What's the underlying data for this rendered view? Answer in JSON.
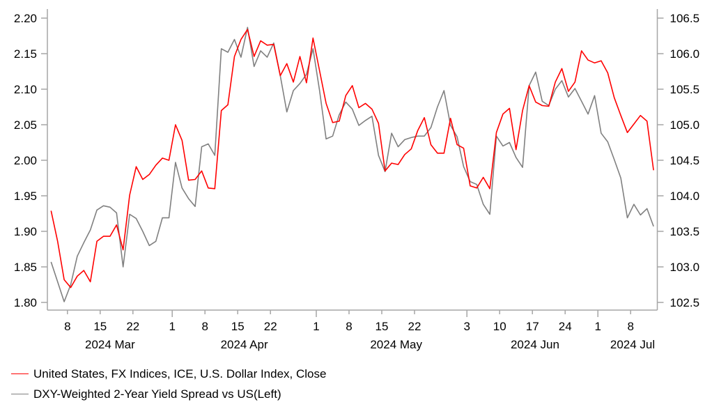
{
  "chart_data": {
    "type": "line",
    "title": "",
    "xlabel": "",
    "ylabel_left": "",
    "ylabel_right": "",
    "grid": false,
    "legend_position": "bottom-left",
    "left_axis": {
      "range": [
        1.8,
        2.2
      ],
      "ticks": [
        "1.80",
        "1.85",
        "1.90",
        "1.95",
        "2.00",
        "2.05",
        "2.10",
        "2.15",
        "2.20"
      ],
      "tick_values": [
        1.8,
        1.85,
        1.9,
        1.95,
        2.0,
        2.05,
        2.1,
        2.15,
        2.2
      ]
    },
    "right_axis": {
      "range": [
        102.5,
        106.5
      ],
      "ticks": [
        "102.5",
        "103.0",
        "103.5",
        "104.0",
        "104.5",
        "105.0",
        "105.5",
        "106.0",
        "106.5"
      ],
      "tick_values": [
        102.5,
        103.0,
        103.5,
        104.0,
        104.5,
        105.0,
        105.5,
        106.0,
        106.5
      ]
    },
    "x_axis": {
      "unit": "business-day index",
      "n_points": 93,
      "day_ticks": [
        {
          "label": "8",
          "pos": 2.5,
          "month_start": false
        },
        {
          "label": "15",
          "pos": 7.5,
          "month_start": false
        },
        {
          "label": "22",
          "pos": 12.5,
          "month_start": false
        },
        {
          "label": "1",
          "pos": 18.5,
          "month_start": true
        },
        {
          "label": "8",
          "pos": 23.5,
          "month_start": false
        },
        {
          "label": "15",
          "pos": 28.5,
          "month_start": false
        },
        {
          "label": "22",
          "pos": 33.5,
          "month_start": false
        },
        {
          "label": "1",
          "pos": 40.5,
          "month_start": true
        },
        {
          "label": "8",
          "pos": 45.5,
          "month_start": false
        },
        {
          "label": "15",
          "pos": 50.5,
          "month_start": false
        },
        {
          "label": "22",
          "pos": 55.5,
          "month_start": false
        },
        {
          "label": "3",
          "pos": 63.5,
          "month_start": true
        },
        {
          "label": "10",
          "pos": 68.5,
          "month_start": false
        },
        {
          "label": "17",
          "pos": 73.5,
          "month_start": false
        },
        {
          "label": "24",
          "pos": 78.5,
          "month_start": false
        },
        {
          "label": "1",
          "pos": 83.5,
          "month_start": true
        },
        {
          "label": "8",
          "pos": 88.5,
          "month_start": false
        }
      ],
      "month_labels": [
        {
          "label": "2024 Mar",
          "pos": 9.0
        },
        {
          "label": "2024 Apr",
          "pos": 29.5
        },
        {
          "label": "2024 May",
          "pos": 52.7
        },
        {
          "label": "2024 Jun",
          "pos": 73.9
        },
        {
          "label": "2024 Jul",
          "pos": 88.8
        }
      ]
    },
    "series": [
      {
        "name": "United States, FX Indices, ICE, U.S. Dollar Index, Close",
        "axis": "right",
        "color": "#ff0000",
        "values": [
          103.79,
          103.36,
          102.82,
          102.71,
          102.87,
          102.95,
          102.79,
          103.36,
          103.43,
          103.43,
          103.59,
          103.24,
          104.01,
          104.41,
          104.23,
          104.3,
          104.43,
          104.53,
          104.5,
          105.0,
          104.78,
          104.22,
          104.23,
          104.35,
          104.11,
          104.1,
          105.2,
          105.28,
          105.96,
          106.2,
          106.34,
          105.96,
          106.18,
          106.12,
          106.13,
          105.69,
          105.86,
          105.6,
          105.96,
          105.59,
          106.22,
          105.76,
          105.3,
          105.03,
          105.05,
          105.41,
          105.55,
          105.24,
          105.3,
          105.22,
          105.02,
          104.35,
          104.46,
          104.44,
          104.58,
          104.66,
          104.92,
          105.1,
          104.72,
          104.6,
          104.6,
          105.09,
          104.72,
          104.67,
          104.14,
          104.11,
          104.26,
          104.1,
          104.89,
          105.15,
          105.23,
          104.65,
          105.2,
          105.55,
          105.32,
          105.27,
          105.26,
          105.6,
          105.79,
          105.47,
          105.6,
          106.04,
          105.91,
          105.87,
          105.9,
          105.73,
          105.38,
          105.13,
          104.89,
          105.01,
          105.13,
          105.05,
          104.36
        ]
      },
      {
        "name": "DXY-Weighted 2-Year Yield Spread vs US(Left)",
        "axis": "left",
        "color": "#808080",
        "values": [
          1.857,
          1.829,
          1.801,
          1.825,
          1.865,
          1.884,
          1.902,
          1.93,
          1.936,
          1.934,
          1.926,
          1.85,
          1.924,
          1.918,
          1.9,
          1.88,
          1.886,
          1.919,
          1.919,
          1.997,
          1.961,
          1.946,
          1.935,
          2.019,
          2.023,
          2.007,
          2.157,
          2.152,
          2.17,
          2.145,
          2.187,
          2.132,
          2.154,
          2.145,
          2.165,
          2.119,
          2.068,
          2.098,
          2.108,
          2.121,
          2.157,
          2.098,
          2.03,
          2.034,
          2.064,
          2.082,
          2.072,
          2.049,
          2.056,
          2.062,
          2.007,
          1.984,
          2.038,
          2.019,
          2.029,
          2.032,
          2.034,
          2.034,
          2.046,
          2.075,
          2.098,
          2.049,
          2.033,
          1.991,
          1.97,
          1.966,
          1.938,
          1.924,
          2.034,
          2.02,
          2.025,
          2.004,
          1.99,
          2.105,
          2.124,
          2.083,
          2.077,
          2.1,
          2.112,
          2.089,
          2.101,
          2.083,
          2.065,
          2.091,
          2.038,
          2.026,
          2.001,
          1.975,
          1.919,
          1.938,
          1.923,
          1.932,
          1.907
        ]
      }
    ]
  },
  "legend": {
    "items": [
      {
        "label": "United States, FX Indices, ICE, U.S. Dollar Index, Close",
        "color": "#ff0000"
      },
      {
        "label": "DXY-Weighted 2-Year Yield Spread vs US(Left)",
        "color": "#808080"
      }
    ]
  }
}
